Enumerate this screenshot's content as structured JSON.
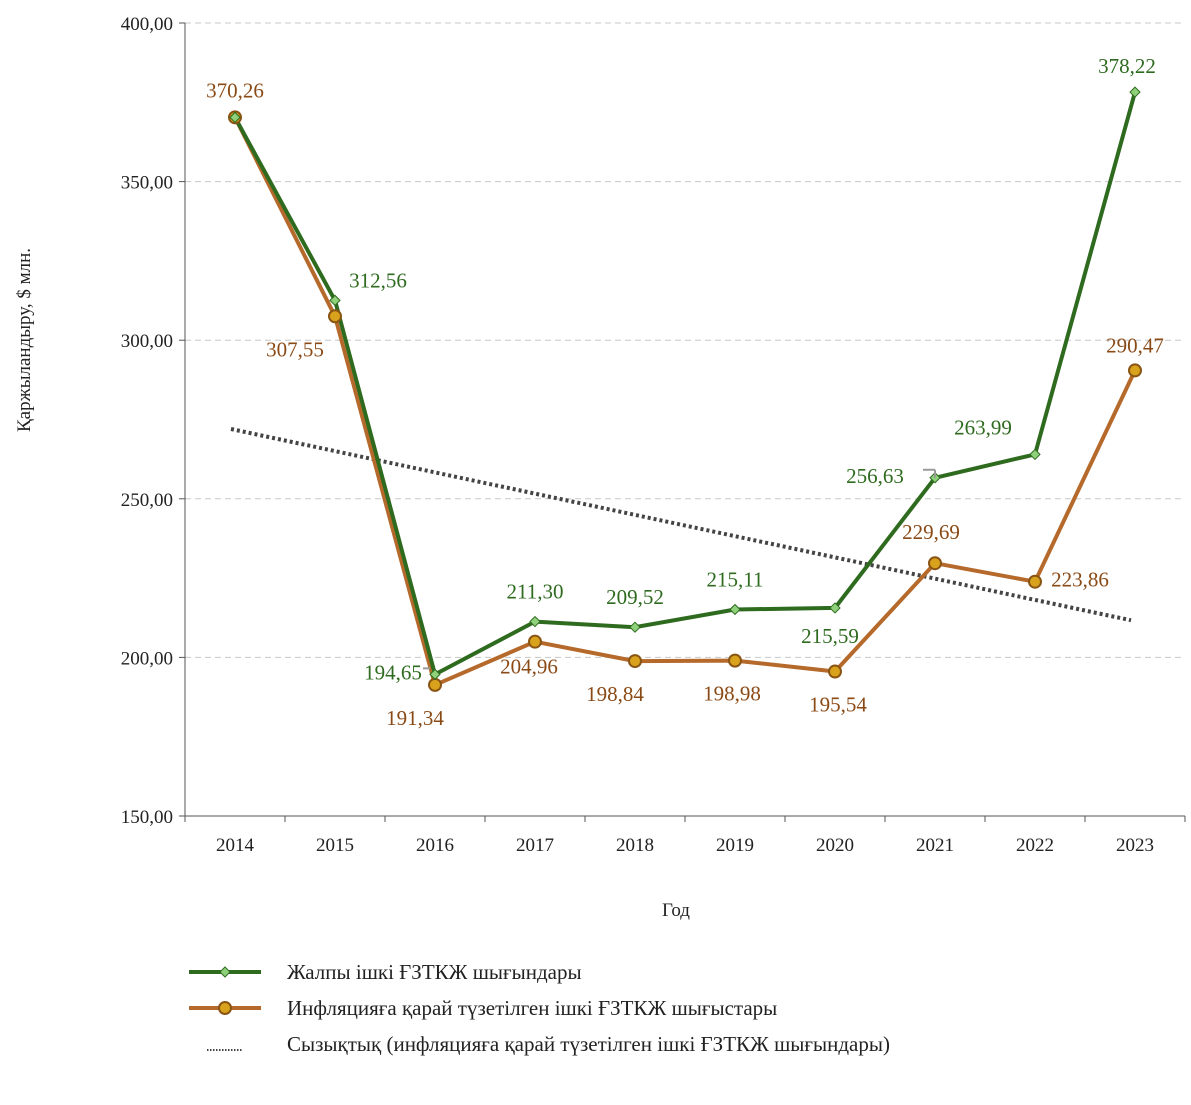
{
  "chart_data": {
    "type": "line",
    "categories": [
      "2014",
      "2015",
      "2016",
      "2017",
      "2018",
      "2019",
      "2020",
      "2021",
      "2022",
      "2023"
    ],
    "ylabel": "Қаржыландыру, $ млн.",
    "xlabel": "Год",
    "ylim": [
      150,
      400
    ],
    "yticks": [
      150,
      200,
      250,
      300,
      350,
      400
    ],
    "ytick_labels": [
      "150,00",
      "200,00",
      "250,00",
      "300,00",
      "350,00",
      "400,00"
    ],
    "grid": "horizontal dashed",
    "legend_position": "bottom",
    "series": [
      {
        "name": "Жалпы ішкі ҒЗТКЖ шығындары",
        "color": "#2e6b1f",
        "marker": "diamond",
        "values": [
          370.26,
          312.56,
          194.65,
          211.3,
          209.52,
          215.11,
          215.59,
          256.63,
          263.99,
          378.22
        ],
        "labels": [
          "",
          "312,56",
          "194,65",
          "211,30",
          "209,52",
          "215,11",
          "215,59",
          "256,63",
          "263,99",
          "378,22"
        ]
      },
      {
        "name": "Инфляцияға қарай түзетілген ішкі ҒЗТКЖ шығыстары",
        "color": "#b5692a",
        "marker": "circle",
        "values": [
          370.26,
          307.55,
          191.34,
          204.96,
          198.84,
          198.98,
          195.54,
          229.69,
          223.86,
          290.47
        ],
        "labels": [
          "370,26",
          "307,55",
          "191,34",
          "204,96",
          "198,84",
          "198,98",
          "195,54",
          "229,69",
          "223,86",
          "290,47"
        ]
      },
      {
        "name": "Сызықтық (инфляцияға қарай түзетілген ішкі ҒЗТКЖ шығындары)",
        "color": "#444444",
        "style": "dotted",
        "trendline": true,
        "values": [
          272,
          265.3,
          258.6,
          251.9,
          245.2,
          238.5,
          231.8,
          225.1,
          218.4,
          211.7
        ]
      }
    ]
  }
}
